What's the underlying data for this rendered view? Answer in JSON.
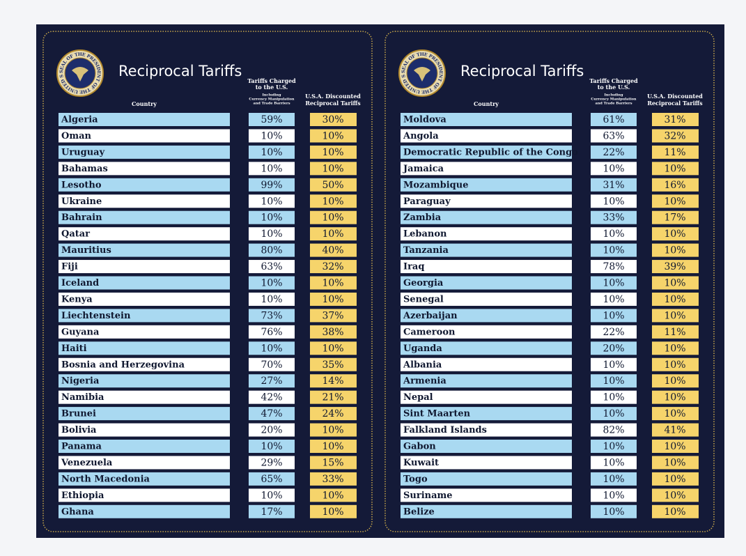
{
  "panels": [
    {
      "title": "Reciprocal Tariffs",
      "seal_text": "SEAL OF THE PRESIDENT OF THE UNITED STATES",
      "headers": {
        "country": "Country",
        "charged": [
          "Tariffs Charged",
          "to the U.S."
        ],
        "note": [
          "Including",
          "Currency Manipulation",
          "and Trade Barriers"
        ],
        "discounted": [
          "U.S.A. Discounted",
          "Reciprocal Tariffs"
        ]
      },
      "rows": [
        [
          "Algeria",
          "59%",
          "30%"
        ],
        [
          "Oman",
          "10%",
          "10%"
        ],
        [
          "Uruguay",
          "10%",
          "10%"
        ],
        [
          "Bahamas",
          "10%",
          "10%"
        ],
        [
          "Lesotho",
          "99%",
          "50%"
        ],
        [
          "Ukraine",
          "10%",
          "10%"
        ],
        [
          "Bahrain",
          "10%",
          "10%"
        ],
        [
          "Qatar",
          "10%",
          "10%"
        ],
        [
          "Mauritius",
          "80%",
          "40%"
        ],
        [
          "Fiji",
          "63%",
          "32%"
        ],
        [
          "Iceland",
          "10%",
          "10%"
        ],
        [
          "Kenya",
          "10%",
          "10%"
        ],
        [
          "Liechtenstein",
          "73%",
          "37%"
        ],
        [
          "Guyana",
          "76%",
          "38%"
        ],
        [
          "Haiti",
          "10%",
          "10%"
        ],
        [
          "Bosnia and Herzegovina",
          "70%",
          "35%"
        ],
        [
          "Nigeria",
          "27%",
          "14%"
        ],
        [
          "Namibia",
          "42%",
          "21%"
        ],
        [
          "Brunei",
          "47%",
          "24%"
        ],
        [
          "Bolivia",
          "20%",
          "10%"
        ],
        [
          "Panama",
          "10%",
          "10%"
        ],
        [
          "Venezuela",
          "29%",
          "15%"
        ],
        [
          "North Macedonia",
          "65%",
          "33%"
        ],
        [
          "Ethiopia",
          "10%",
          "10%"
        ],
        [
          "Ghana",
          "17%",
          "10%"
        ]
      ]
    },
    {
      "title": "Reciprocal Tariffs",
      "seal_text": "SEAL OF THE PRESIDENT OF THE UNITED STATES",
      "headers": {
        "country": "Country",
        "charged": [
          "Tariffs Charged",
          "to the U.S."
        ],
        "note": [
          "Including",
          "Currency Manipulation",
          "and Trade Barriers"
        ],
        "discounted": [
          "U.S.A. Discounted",
          "Reciprocal Tariffs"
        ]
      },
      "rows": [
        [
          "Moldova",
          "61%",
          "31%"
        ],
        [
          "Angola",
          "63%",
          "32%"
        ],
        [
          "Democratic Republic of the Congo",
          "22%",
          "11%"
        ],
        [
          "Jamaica",
          "10%",
          "10%"
        ],
        [
          "Mozambique",
          "31%",
          "16%"
        ],
        [
          "Paraguay",
          "10%",
          "10%"
        ],
        [
          "Zambia",
          "33%",
          "17%"
        ],
        [
          "Lebanon",
          "10%",
          "10%"
        ],
        [
          "Tanzania",
          "10%",
          "10%"
        ],
        [
          "Iraq",
          "78%",
          "39%"
        ],
        [
          "Georgia",
          "10%",
          "10%"
        ],
        [
          "Senegal",
          "10%",
          "10%"
        ],
        [
          "Azerbaijan",
          "10%",
          "10%"
        ],
        [
          "Cameroon",
          "22%",
          "11%"
        ],
        [
          "Uganda",
          "20%",
          "10%"
        ],
        [
          "Albania",
          "10%",
          "10%"
        ],
        [
          "Armenia",
          "10%",
          "10%"
        ],
        [
          "Nepal",
          "10%",
          "10%"
        ],
        [
          "Sint Maarten",
          "10%",
          "10%"
        ],
        [
          "Falkland Islands",
          "82%",
          "41%"
        ],
        [
          "Gabon",
          "10%",
          "10%"
        ],
        [
          "Kuwait",
          "10%",
          "10%"
        ],
        [
          "Togo",
          "10%",
          "10%"
        ],
        [
          "Suriname",
          "10%",
          "10%"
        ],
        [
          "Belize",
          "10%",
          "10%"
        ]
      ]
    }
  ]
}
